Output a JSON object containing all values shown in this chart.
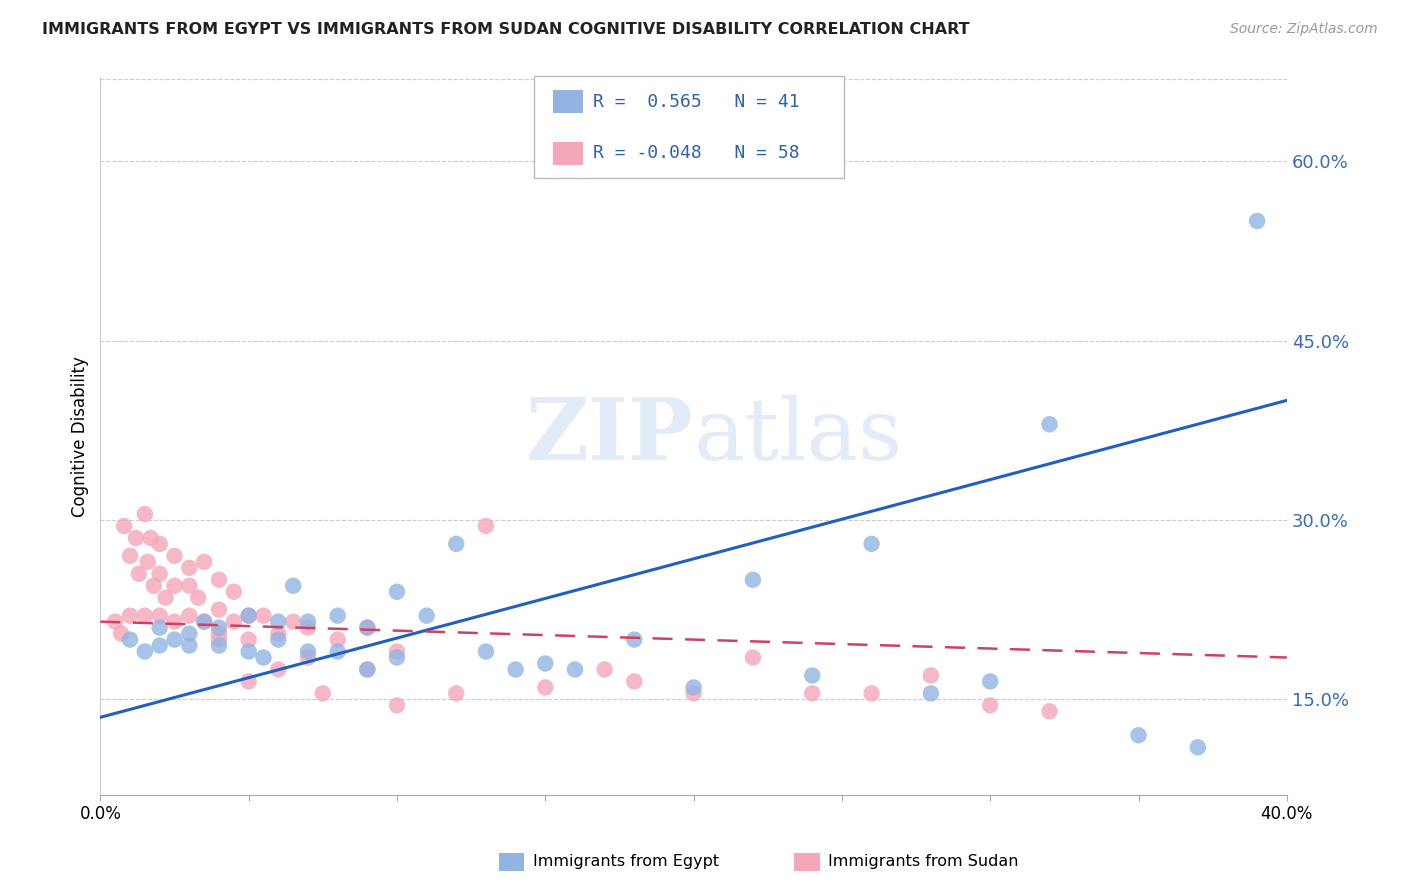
{
  "title": "IMMIGRANTS FROM EGYPT VS IMMIGRANTS FROM SUDAN COGNITIVE DISABILITY CORRELATION CHART",
  "source": "Source: ZipAtlas.com",
  "ylabel": "Cognitive Disability",
  "yticks": [
    "15.0%",
    "30.0%",
    "45.0%",
    "60.0%"
  ],
  "ytick_vals": [
    0.15,
    0.3,
    0.45,
    0.6
  ],
  "xlim": [
    0.0,
    0.4
  ],
  "ylim": [
    0.07,
    0.67
  ],
  "egypt_color": "#92b4e3",
  "sudan_color": "#f4a7b9",
  "egypt_line_color": "#2060c0",
  "sudan_line_color": "#d04060",
  "legend_egypt_R": "0.565",
  "legend_egypt_N": "41",
  "legend_sudan_R": "-0.048",
  "legend_sudan_N": "58",
  "egypt_scatter_x": [
    0.01,
    0.015,
    0.02,
    0.02,
    0.025,
    0.03,
    0.03,
    0.035,
    0.04,
    0.04,
    0.05,
    0.05,
    0.055,
    0.06,
    0.06,
    0.065,
    0.07,
    0.07,
    0.08,
    0.08,
    0.09,
    0.09,
    0.1,
    0.1,
    0.11,
    0.12,
    0.13,
    0.14,
    0.15,
    0.16,
    0.18,
    0.2,
    0.22,
    0.24,
    0.26,
    0.28,
    0.3,
    0.32,
    0.35,
    0.37,
    0.39
  ],
  "egypt_scatter_y": [
    0.2,
    0.19,
    0.21,
    0.195,
    0.2,
    0.205,
    0.195,
    0.215,
    0.195,
    0.21,
    0.19,
    0.22,
    0.185,
    0.215,
    0.2,
    0.245,
    0.19,
    0.215,
    0.19,
    0.22,
    0.175,
    0.21,
    0.185,
    0.24,
    0.22,
    0.28,
    0.19,
    0.175,
    0.18,
    0.175,
    0.2,
    0.16,
    0.25,
    0.17,
    0.28,
    0.155,
    0.165,
    0.38,
    0.12,
    0.11,
    0.55
  ],
  "sudan_scatter_x": [
    0.005,
    0.007,
    0.008,
    0.01,
    0.01,
    0.012,
    0.013,
    0.015,
    0.015,
    0.016,
    0.017,
    0.018,
    0.02,
    0.02,
    0.02,
    0.022,
    0.025,
    0.025,
    0.025,
    0.03,
    0.03,
    0.03,
    0.033,
    0.035,
    0.035,
    0.04,
    0.04,
    0.04,
    0.04,
    0.045,
    0.045,
    0.05,
    0.05,
    0.05,
    0.055,
    0.06,
    0.06,
    0.065,
    0.07,
    0.07,
    0.075,
    0.08,
    0.09,
    0.09,
    0.1,
    0.1,
    0.12,
    0.13,
    0.15,
    0.17,
    0.18,
    0.2,
    0.22,
    0.24,
    0.26,
    0.28,
    0.3,
    0.32
  ],
  "sudan_scatter_y": [
    0.215,
    0.205,
    0.295,
    0.22,
    0.27,
    0.285,
    0.255,
    0.305,
    0.22,
    0.265,
    0.285,
    0.245,
    0.28,
    0.255,
    0.22,
    0.235,
    0.27,
    0.245,
    0.215,
    0.26,
    0.245,
    0.22,
    0.235,
    0.265,
    0.215,
    0.25,
    0.225,
    0.205,
    0.2,
    0.24,
    0.215,
    0.22,
    0.2,
    0.165,
    0.22,
    0.205,
    0.175,
    0.215,
    0.21,
    0.185,
    0.155,
    0.2,
    0.21,
    0.175,
    0.19,
    0.145,
    0.155,
    0.295,
    0.16,
    0.175,
    0.165,
    0.155,
    0.185,
    0.155,
    0.155,
    0.17,
    0.145,
    0.14
  ]
}
